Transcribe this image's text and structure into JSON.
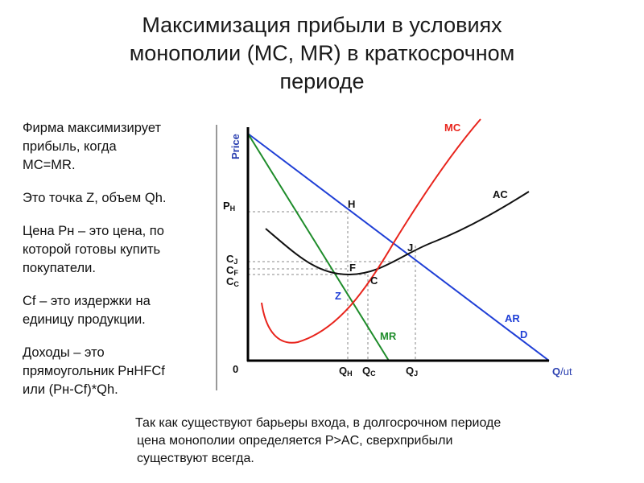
{
  "title": {
    "line1": "Максимизация прибыли в условиях",
    "line2": "монополии (MC, MR) в краткосрочном",
    "line3": "периоде"
  },
  "sidebar": {
    "p1": [
      "Фирма максимизирует",
      "прибыль, когда",
      "MC=MR."
    ],
    "p2": [
      "Это точка Z, объем Qh."
    ],
    "p3": [
      "Цена Рн – это цена, по",
      "которой готовы купить",
      "покупатели."
    ],
    "p4": [
      "Cf – это издержки на",
      "единицу продукции."
    ],
    "p5": [
      "Доходы – это",
      "прямоугольник РнHFCf",
      "или (Рн-Cf)*Qh."
    ]
  },
  "note": {
    "line1": "Так как существуют барьеры входа, в долгосрочном периоде",
    "line2": "цена монополии определяется P>AC, сверхприбыли",
    "line3": "существуют всегда."
  },
  "diagram": {
    "axis_y_label": "Price",
    "axis_x_label_q": "Q",
    "axis_x_label_unit": "/ut",
    "origin": "0",
    "y_ticks": [
      {
        "main": "P",
        "sub": "H"
      },
      {
        "main": "C",
        "sub": "J"
      },
      {
        "main": "C",
        "sub": "F"
      },
      {
        "main": "C",
        "sub": "C"
      }
    ],
    "x_ticks": [
      {
        "main": "Q",
        "sub": "H"
      },
      {
        "main": "Q",
        "sub": "C"
      },
      {
        "main": "Q",
        "sub": "J"
      }
    ],
    "points": {
      "H": "H",
      "J": "J",
      "F": "F",
      "C": "C",
      "Z": "Z"
    },
    "curves": {
      "MC": "MC",
      "AC": "AC",
      "MR": "MR",
      "AR": "AR",
      "D": "D"
    },
    "colors": {
      "mc": "#e8241c",
      "ac": "#111111",
      "mr": "#1e8c2a",
      "demand": "#1f3fd6",
      "axis_label": "#2a3fb0"
    }
  }
}
